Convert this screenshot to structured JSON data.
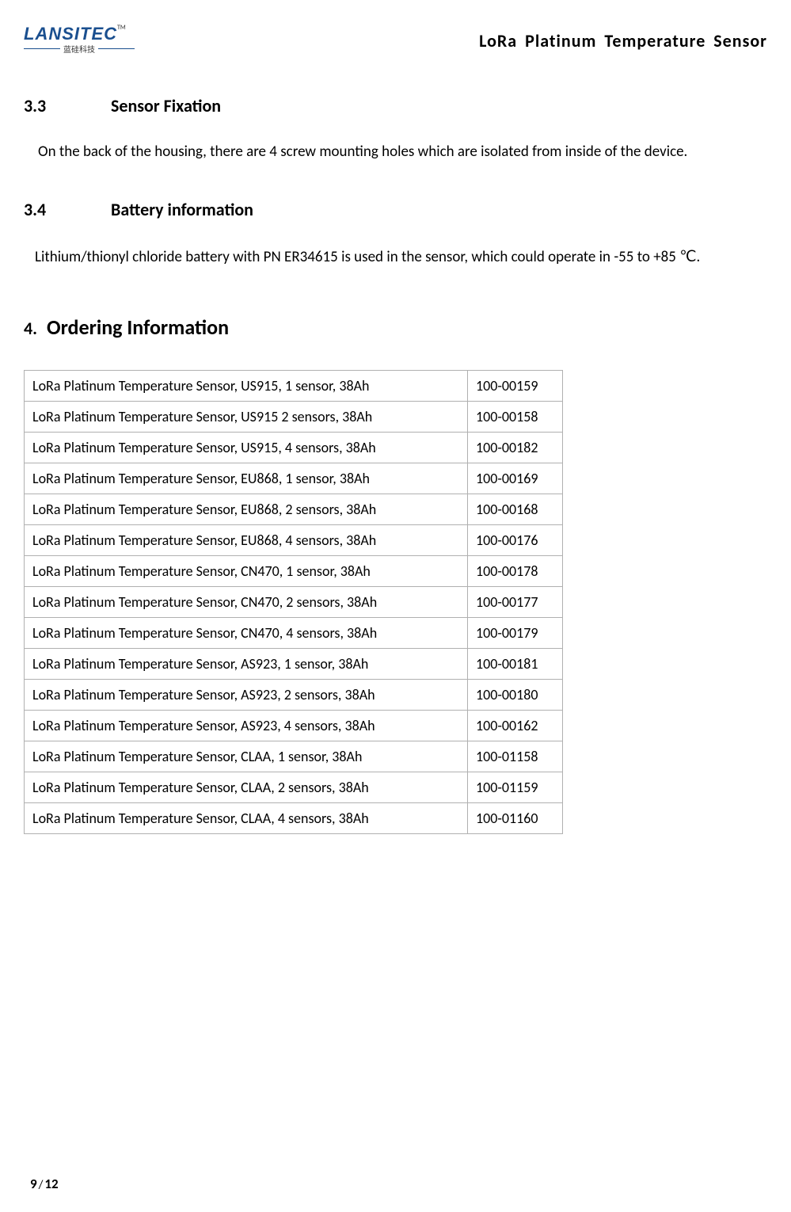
{
  "header": {
    "logo_main": "LANSITEC",
    "logo_tm": "TM",
    "logo_chinese": "蓝硅科技",
    "title": "LoRa  Platinum  Temperature  Sensor"
  },
  "section_3_3": {
    "number": "3.3",
    "title": "Sensor Fixation",
    "body": "On the back of the housing, there are 4 screw mounting holes which are isolated from inside of the  device."
  },
  "section_3_4": {
    "number": "3.4",
    "title": "Battery information",
    "body": "Lithium/thionyl chloride battery with PN ER34615 is used in the sensor, which could  operate in -55 to +85 ℃."
  },
  "section_4": {
    "number": "4.",
    "title": "Ordering Information"
  },
  "ordering_table": {
    "rows": [
      {
        "desc": "LoRa Platinum Temperature Sensor, US915, 1 sensor, 38Ah",
        "pn": "100-00159"
      },
      {
        "desc": "LoRa Platinum Temperature Sensor, US915 2 sensors, 38Ah",
        "pn": "100-00158"
      },
      {
        "desc": "LoRa Platinum Temperature Sensor, US915, 4 sensors, 38Ah",
        "pn": "100-00182"
      },
      {
        "desc": "LoRa Platinum Temperature Sensor, EU868, 1 sensor, 38Ah",
        "pn": "100-00169"
      },
      {
        "desc": "LoRa Platinum Temperature Sensor, EU868, 2 sensors, 38Ah",
        "pn": "100-00168"
      },
      {
        "desc": "LoRa Platinum Temperature Sensor, EU868, 4 sensors, 38Ah",
        "pn": "100-00176"
      },
      {
        "desc": "LoRa Platinum Temperature Sensor, CN470, 1 sensor, 38Ah",
        "pn": "100-00178"
      },
      {
        "desc": "LoRa Platinum Temperature Sensor, CN470, 2 sensors, 38Ah",
        "pn": "100-00177"
      },
      {
        "desc": "LoRa Platinum Temperature Sensor, CN470, 4 sensors, 38Ah",
        "pn": "100-00179"
      },
      {
        "desc": "LoRa Platinum Temperature Sensor, AS923, 1 sensor, 38Ah",
        "pn": "100-00181"
      },
      {
        "desc": "LoRa Platinum Temperature Sensor, AS923, 2 sensors, 38Ah",
        "pn": "100-00180"
      },
      {
        "desc": "LoRa Platinum Temperature Sensor, AS923, 4 sensors, 38Ah",
        "pn": "100-00162"
      },
      {
        "desc": "LoRa Platinum Temperature Sensor, CLAA, 1 sensor, 38Ah",
        "pn": "100-01158"
      },
      {
        "desc": "LoRa Platinum Temperature Sensor, CLAA, 2 sensors, 38Ah",
        "pn": "100-01159"
      },
      {
        "desc": "LoRa Platinum Temperature Sensor, CLAA, 4 sensors, 38Ah",
        "pn": "100-01160"
      }
    ]
  },
  "footer": {
    "page_current": "9",
    "page_separator": "/",
    "page_total": "12"
  }
}
